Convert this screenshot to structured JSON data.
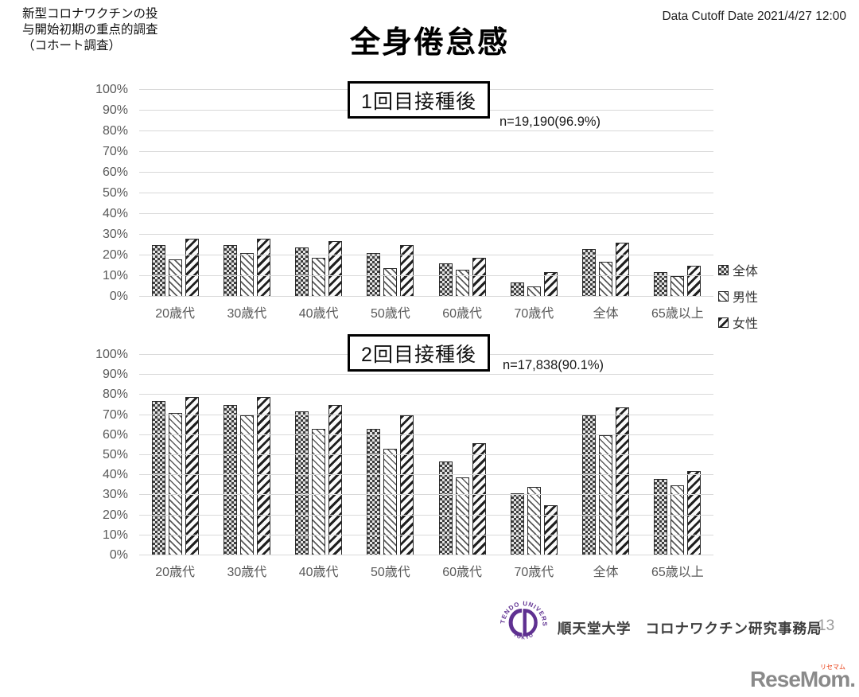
{
  "header": {
    "note_lines": [
      "新型コロナワクチンの投",
      "与開始初期の重点的調査",
      "（コホート調査）"
    ],
    "title": "全身倦怠感",
    "data_cutoff": "Data Cutoff Date 2021/4/27 12:00"
  },
  "legend": {
    "position": "right",
    "items": [
      {
        "label": "全体",
        "pattern": "dotted-grid"
      },
      {
        "label": "男性",
        "pattern": "light-downward-diagonal"
      },
      {
        "label": "女性",
        "pattern": "wide-upward-diagonal"
      }
    ]
  },
  "chart_data": [
    {
      "type": "bar",
      "title": "1回目接種後",
      "subtitle": "n=19,190(96.9%)",
      "categories": [
        "20歳代",
        "30歳代",
        "40歳代",
        "50歳代",
        "60歳代",
        "70歳代",
        "全体",
        "65歳以上"
      ],
      "series": [
        {
          "name": "全体",
          "values": [
            25,
            25,
            24,
            21,
            16,
            7,
            23,
            12
          ]
        },
        {
          "name": "男性",
          "values": [
            18,
            21,
            19,
            14,
            13,
            5,
            17,
            10
          ]
        },
        {
          "name": "女性",
          "values": [
            28,
            28,
            27,
            25,
            19,
            12,
            26,
            15
          ]
        }
      ],
      "ylabel": "",
      "xlabel": "",
      "ylim": [
        0,
        100
      ],
      "ytick_step": 10,
      "ytick_suffix": "%",
      "grid": true,
      "legend_position": "right"
    },
    {
      "type": "bar",
      "title": "2回目接種後",
      "subtitle": "n=17,838(90.1%)",
      "categories": [
        "20歳代",
        "30歳代",
        "40歳代",
        "50歳代",
        "60歳代",
        "70歳代",
        "全体",
        "65歳以上"
      ],
      "series": [
        {
          "name": "全体",
          "values": [
            77,
            75,
            72,
            63,
            47,
            31,
            70,
            38
          ]
        },
        {
          "name": "男性",
          "values": [
            71,
            70,
            63,
            53,
            39,
            34,
            60,
            35
          ]
        },
        {
          "name": "女性",
          "values": [
            79,
            79,
            75,
            70,
            56,
            25,
            74,
            42
          ]
        }
      ],
      "ylabel": "",
      "xlabel": "",
      "ylim": [
        0,
        100
      ],
      "ytick_step": 10,
      "ytick_suffix": "%",
      "grid": true,
      "legend_position": "none"
    }
  ],
  "footer": {
    "university": "順天堂大学",
    "organization": "コロナワクチン研究事務局",
    "page_number": "13",
    "logo": {
      "ring_text": "JUNTENDO UNIVERSITY",
      "bottom_text": "TOKYO",
      "year": "1838",
      "color": "#5f3191"
    }
  },
  "watermark": {
    "text": "ReseMom",
    "dot": ".",
    "ruby": "リセマム",
    "color": "#8a8a8a",
    "ruby_color": "#e8380d"
  },
  "colors": {
    "gridline": "#d9d9d9",
    "axis_label": "#595959",
    "logo_purple": "#5f3191",
    "watermark_red": "#e8380d"
  }
}
